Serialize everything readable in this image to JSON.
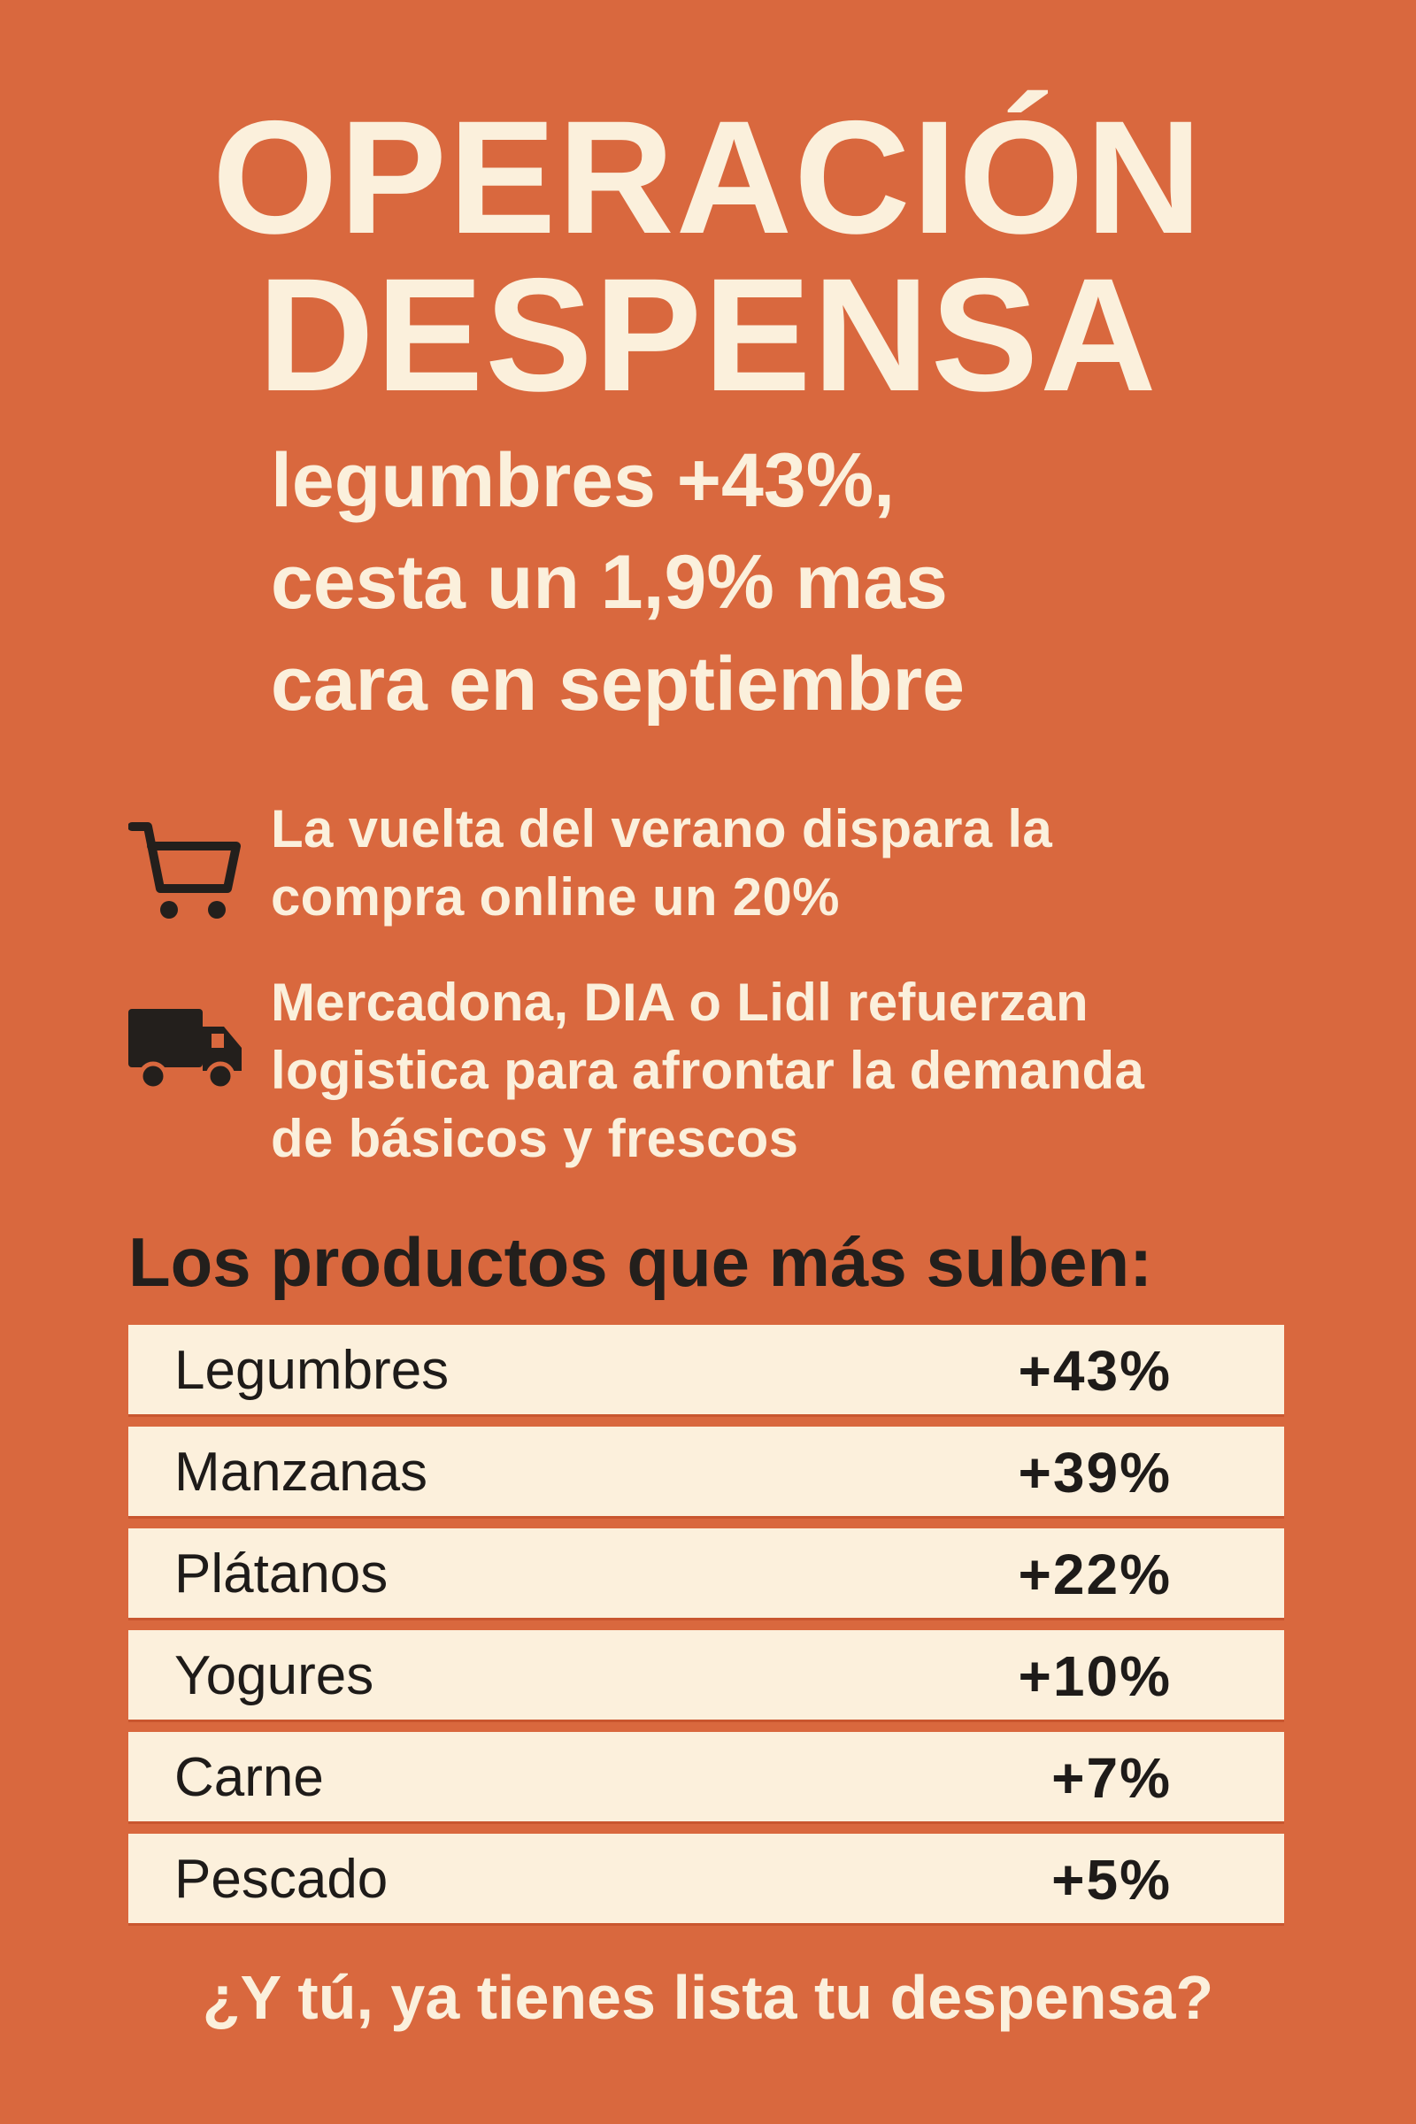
{
  "colors": {
    "background": "#D9683E",
    "text_light": "#FBF0DC",
    "text_dark": "#231F1C",
    "row_fill": "#FCF0DC"
  },
  "title": {
    "line1": "OPERACIÓN",
    "line2": "DESPENSA"
  },
  "subtitle": {
    "line1": "legumbres +43%,",
    "line2": "cesta un 1,9% mas",
    "line3": "cara en septiembre"
  },
  "bullets": [
    {
      "icon": "shopping-cart-icon",
      "lines": [
        "La vuelta del verano dispara la",
        "compra online un 20%"
      ]
    },
    {
      "icon": "truck-icon",
      "lines": [
        "Mercadona, DIA o Lidl refuerzan",
        "logistica para afrontar la demanda",
        "de básicos y frescos"
      ]
    }
  ],
  "table": {
    "heading": "Los productos que más suben:",
    "rows": [
      {
        "product": "Legumbres",
        "change": "+43%"
      },
      {
        "product": "Manzanas",
        "change": "+39%"
      },
      {
        "product": "Plátanos",
        "change": "+22%"
      },
      {
        "product": "Yogures",
        "change": "+10%"
      },
      {
        "product": "Carne",
        "change": "+7%"
      },
      {
        "product": "Pescado",
        "change": "+5%"
      }
    ]
  },
  "footer": "¿Y tú, ya tienes lista tu despensa?"
}
